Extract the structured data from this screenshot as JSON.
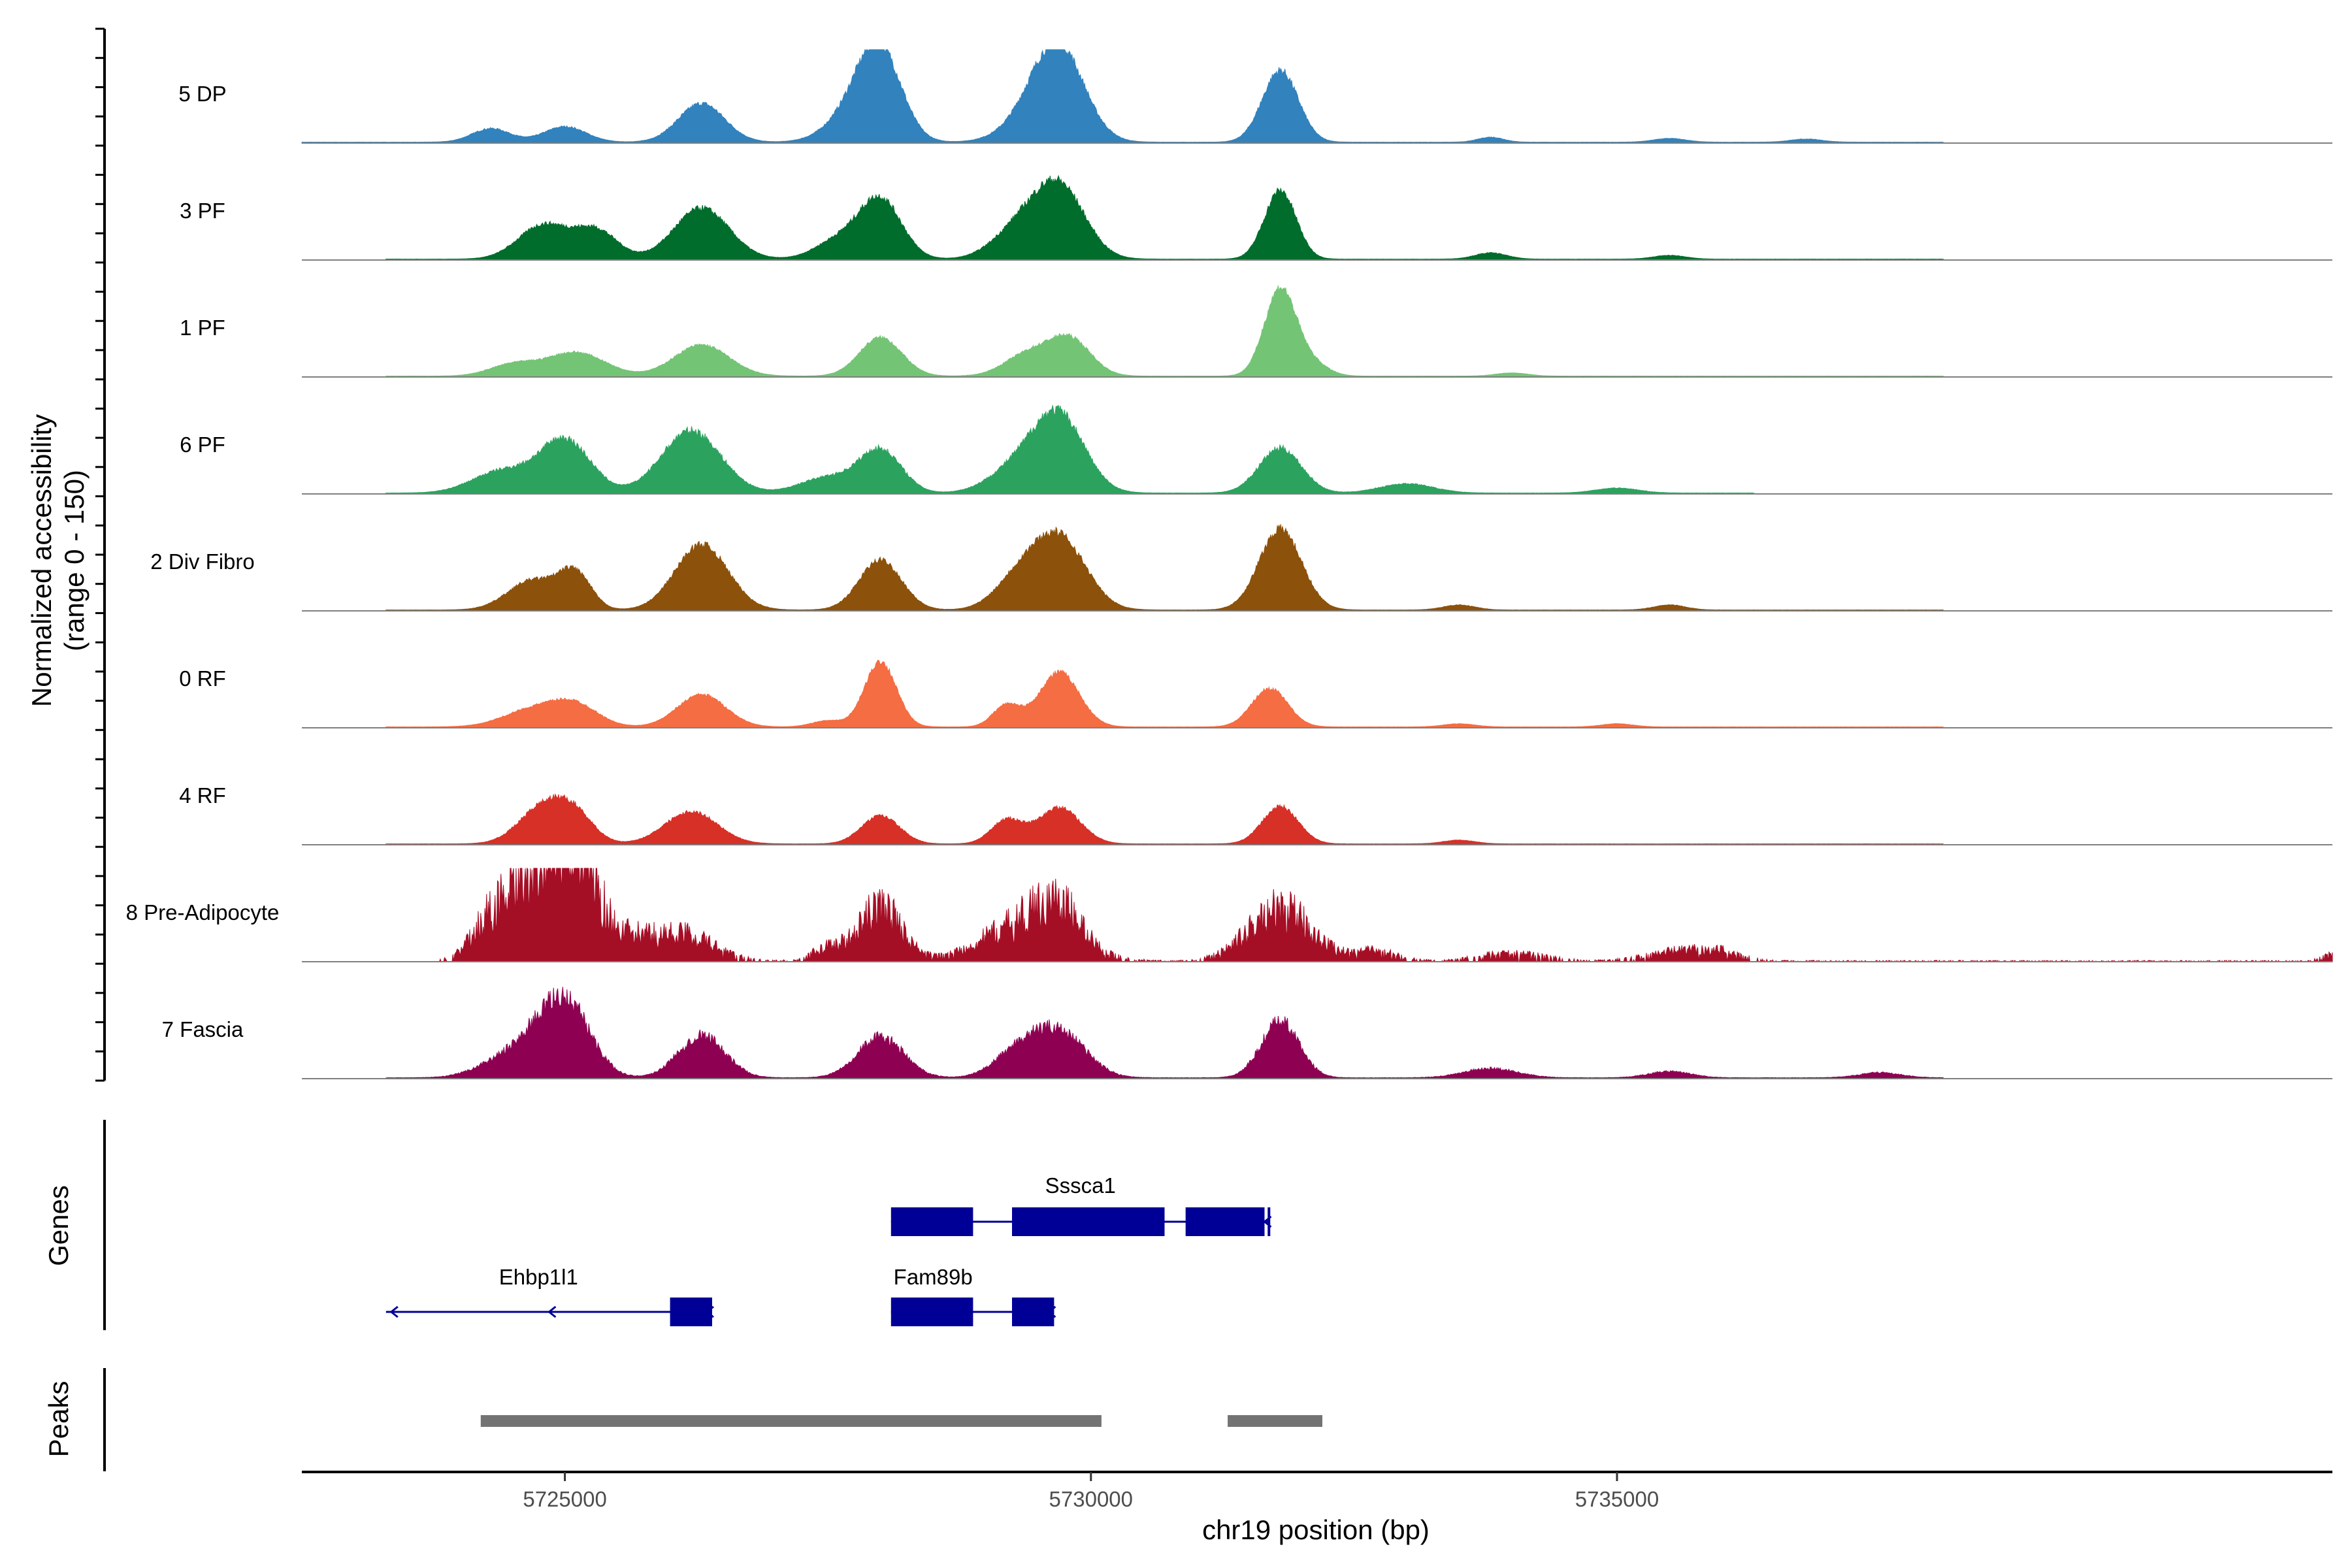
{
  "chart_data": {
    "type": "area",
    "title": "",
    "ylabel": "Normalized accessibility\n(range 0 - 150)",
    "ylabel_lines": [
      "Normalized accessibility",
      "(range 0 - 150)"
    ],
    "y_range": [
      0,
      150
    ],
    "xlabel": "chr19 position (bp)",
    "x_range": [
      5722500,
      5741800
    ],
    "x_ticks": [
      5725000,
      5730000,
      5735000
    ],
    "x_tick_labels": [
      "5725000",
      "5730000",
      "5735000"
    ],
    "grid": false,
    "panel_labels": {
      "genes": "Genes",
      "peaks": "Peaks"
    },
    "tracks": [
      {
        "name": "5 DP",
        "color": "#3182bd",
        "coverage_start": 5722500,
        "coverage_end": 5738100,
        "spikiness": 0.06,
        "peaks": [
          [
            5724300,
            22,
            180
          ],
          [
            5725000,
            25,
            200
          ],
          [
            5726300,
            62,
            220
          ],
          [
            5727800,
            55,
            260
          ],
          [
            5728000,
            120,
            200
          ],
          [
            5729500,
            40,
            280
          ],
          [
            5729700,
            130,
            240
          ],
          [
            5731800,
            115,
            170
          ],
          [
            5733800,
            8,
            120
          ],
          [
            5735500,
            6,
            150
          ],
          [
            5736800,
            5,
            150
          ]
        ]
      },
      {
        "name": "3 PF",
        "color": "#006d2c",
        "coverage_start": 5723300,
        "coverage_end": 5738100,
        "spikiness": 0.06,
        "peaks": [
          [
            5724800,
            55,
            240
          ],
          [
            5725300,
            45,
            200
          ],
          [
            5726300,
            82,
            260
          ],
          [
            5727600,
            30,
            220
          ],
          [
            5728000,
            95,
            200
          ],
          [
            5729300,
            45,
            240
          ],
          [
            5729700,
            115,
            240
          ],
          [
            5731800,
            110,
            150
          ],
          [
            5733800,
            10,
            150
          ],
          [
            5735500,
            6,
            150
          ]
        ]
      },
      {
        "name": "1 PF",
        "color": "#74c476",
        "coverage_start": 5723300,
        "coverage_end": 5738100,
        "spikiness": 0.05,
        "peaks": [
          [
            5724500,
            18,
            220
          ],
          [
            5725100,
            38,
            280
          ],
          [
            5726300,
            50,
            260
          ],
          [
            5728000,
            62,
            200
          ],
          [
            5729400,
            35,
            220
          ],
          [
            5729800,
            58,
            200
          ],
          [
            5731800,
            140,
            150
          ],
          [
            5732100,
            20,
            150
          ],
          [
            5734000,
            5,
            150
          ]
        ]
      },
      {
        "name": "6 PF",
        "color": "#2ca25f",
        "coverage_start": 5723300,
        "coverage_end": 5736300,
        "spikiness": 0.07,
        "peaks": [
          [
            5724400,
            35,
            280
          ],
          [
            5725000,
            85,
            240
          ],
          [
            5726200,
            100,
            280
          ],
          [
            5727500,
            25,
            260
          ],
          [
            5728000,
            68,
            200
          ],
          [
            5729300,
            40,
            260
          ],
          [
            5729700,
            120,
            240
          ],
          [
            5731800,
            72,
            200
          ],
          [
            5733000,
            15,
            250
          ],
          [
            5735000,
            8,
            200
          ]
        ]
      },
      {
        "name": "2 Div Fibro",
        "color": "#8c510a",
        "coverage_start": 5723300,
        "coverage_end": 5738100,
        "spikiness": 0.06,
        "peaks": [
          [
            5724700,
            48,
            240
          ],
          [
            5725100,
            55,
            150
          ],
          [
            5726300,
            105,
            250
          ],
          [
            5728000,
            80,
            200
          ],
          [
            5729300,
            45,
            220
          ],
          [
            5729700,
            115,
            250
          ],
          [
            5731800,
            130,
            200
          ],
          [
            5733500,
            8,
            150
          ],
          [
            5735500,
            8,
            150
          ]
        ]
      },
      {
        "name": "0 RF",
        "color": "#f46d43",
        "coverage_start": 5723300,
        "coverage_end": 5738100,
        "spikiness": 0.05,
        "peaks": [
          [
            5724700,
            28,
            280
          ],
          [
            5725100,
            32,
            220
          ],
          [
            5726300,
            52,
            230
          ],
          [
            5727500,
            10,
            150
          ],
          [
            5728000,
            105,
            150
          ],
          [
            5729200,
            35,
            130
          ],
          [
            5729700,
            88,
            190
          ],
          [
            5731700,
            62,
            170
          ],
          [
            5733500,
            5,
            150
          ],
          [
            5735000,
            5,
            150
          ]
        ]
      },
      {
        "name": "4 RF",
        "color": "#d73027",
        "coverage_start": 5723300,
        "coverage_end": 5738100,
        "spikiness": 0.06,
        "peaks": [
          [
            5724800,
            60,
            230
          ],
          [
            5725100,
            38,
            180
          ],
          [
            5726200,
            52,
            250
          ],
          [
            5728000,
            45,
            180
          ],
          [
            5729200,
            38,
            150
          ],
          [
            5729700,
            58,
            200
          ],
          [
            5731800,
            60,
            170
          ],
          [
            5733500,
            6,
            150
          ]
        ]
      },
      {
        "name": "8 Pre-Adipocyte",
        "color": "#a50f26",
        "coverage_start": 5723800,
        "coverage_end": 5741800,
        "spikiness": 0.5,
        "peaks": [
          [
            5724300,
            48,
            180
          ],
          [
            5724800,
            135,
            300
          ],
          [
            5725100,
            130,
            200
          ],
          [
            5725600,
            25,
            200
          ],
          [
            5726100,
            42,
            300
          ],
          [
            5727500,
            20,
            150
          ],
          [
            5728000,
            82,
            200
          ],
          [
            5729400,
            60,
            400
          ],
          [
            5729700,
            48,
            200
          ],
          [
            5731800,
            78,
            300
          ],
          [
            5732700,
            15,
            200
          ],
          [
            5734000,
            12,
            300
          ],
          [
            5735600,
            15,
            300
          ],
          [
            5736000,
            10,
            200
          ],
          [
            5741800,
            10,
            100
          ]
        ]
      },
      {
        "name": "7 Fascia",
        "color": "#8e0152",
        "coverage_start": 5723300,
        "coverage_end": 5738100,
        "spikiness": 0.15,
        "peaks": [
          [
            5724400,
            25,
            250
          ],
          [
            5724900,
            100,
            260
          ],
          [
            5725100,
            40,
            200
          ],
          [
            5726300,
            68,
            220
          ],
          [
            5728000,
            65,
            220
          ],
          [
            5729300,
            38,
            220
          ],
          [
            5729700,
            72,
            250
          ],
          [
            5731800,
            90,
            180
          ],
          [
            5733800,
            15,
            250
          ],
          [
            5735500,
            10,
            200
          ],
          [
            5737500,
            8,
            200
          ]
        ]
      }
    ],
    "genes": [
      {
        "name": "Sssca1",
        "strand": "-",
        "start": 5728100,
        "end": 5731700,
        "exons": [
          [
            5728100,
            5728880
          ],
          [
            5729250,
            5730700
          ],
          [
            5730900,
            5731650
          ],
          [
            5731680,
            5731700
          ]
        ]
      },
      {
        "name": "Ehbp1l1",
        "strand": "-",
        "start": 5723300,
        "end": 5726400,
        "exons": [
          [
            5726000,
            5726400
          ]
        ]
      },
      {
        "name": "Fam89b",
        "strand": "-",
        "start": 5728100,
        "end": 5729650,
        "exons": [
          [
            5728100,
            5728880
          ],
          [
            5729250,
            5729650
          ]
        ]
      }
    ],
    "peak_regions": [
      [
        5724200,
        5730100
      ],
      [
        5731300,
        5732200
      ]
    ]
  }
}
